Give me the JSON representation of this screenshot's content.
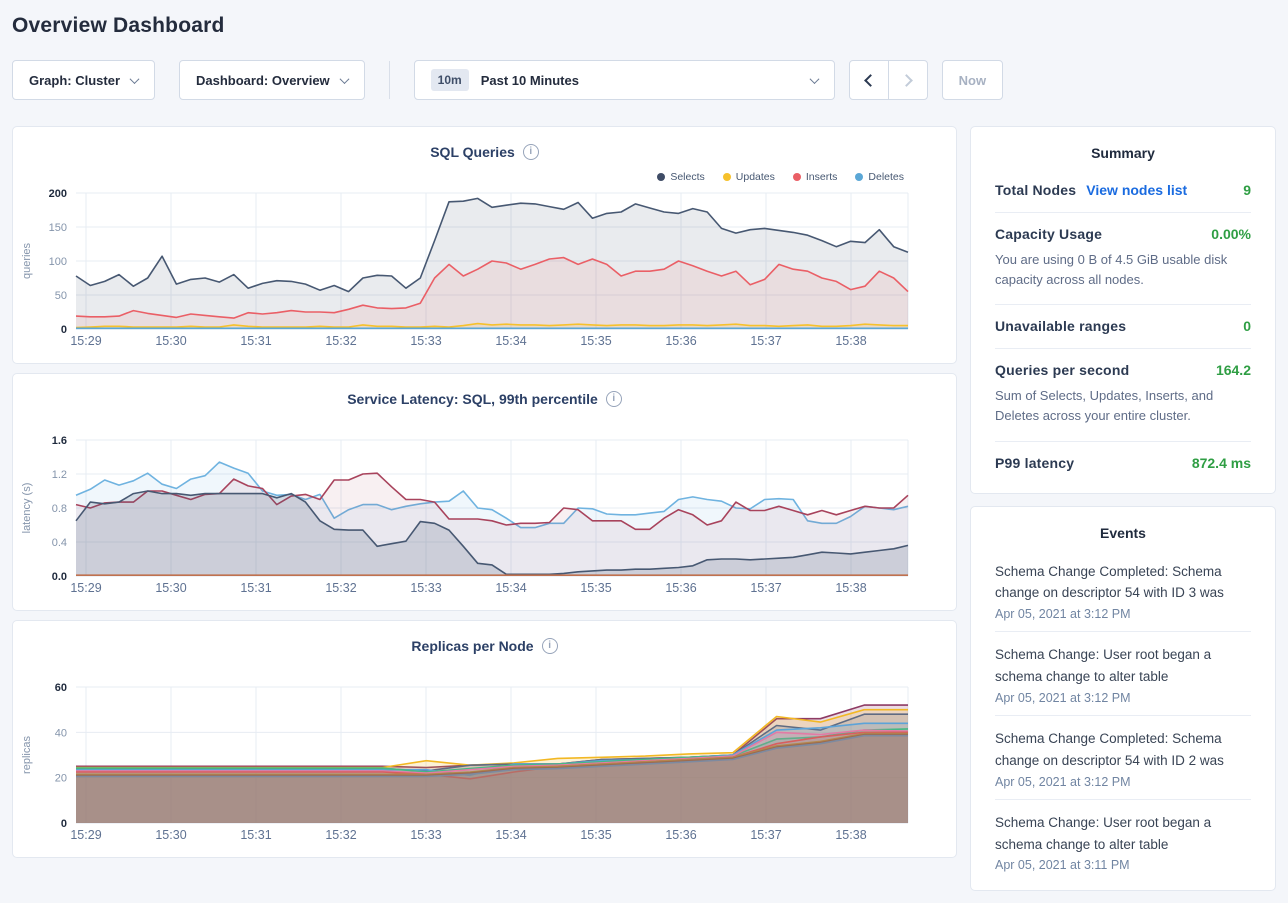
{
  "page": {
    "title": "Overview Dashboard"
  },
  "controls": {
    "graph_dropdown": "Graph: Cluster",
    "dashboard_dropdown": "Dashboard: Overview",
    "time_badge": "10m",
    "time_label": "Past 10 Minutes",
    "now_button": "Now"
  },
  "colors": {
    "accent_link": "#1a6be0",
    "healthy_green": "#2f9e44",
    "page_background": "#f4f6fa",
    "heading_navy": "#242c3d"
  },
  "chart_data": [
    {
      "type": "area",
      "title": "SQL Queries",
      "ylabel": "queries",
      "ylim": [
        0,
        200
      ],
      "yticks": [
        0,
        50,
        100,
        150,
        200
      ],
      "ytick_labels": [
        "0",
        "50",
        "100",
        "150",
        "200"
      ],
      "x_labels": [
        "15:29",
        "15:30",
        "15:31",
        "15:32",
        "15:33",
        "15:34",
        "15:35",
        "15:36",
        "15:37",
        "15:38"
      ],
      "grid": true,
      "legend_position": "top-right",
      "legend": [
        {
          "label": "Selects",
          "color": "#3f4c66"
        },
        {
          "label": "Updates",
          "color": "#f6c12c"
        },
        {
          "label": "Inserts",
          "color": "#ea5f66"
        },
        {
          "label": "Deletes",
          "color": "#5ba7d6"
        }
      ],
      "series": [
        {
          "name": "Selects",
          "color": "#475872",
          "fill_opacity": 0.12,
          "values": [
            78,
            64,
            70,
            80,
            63,
            75,
            107,
            66,
            73,
            75,
            69,
            80,
            60,
            67,
            71,
            70,
            66,
            57,
            64,
            55,
            75,
            79,
            78,
            60,
            75,
            130,
            187,
            188,
            192,
            179,
            182,
            185,
            184,
            180,
            176,
            186,
            163,
            170,
            172,
            184,
            178,
            172,
            170,
            177,
            172,
            148,
            141,
            146,
            148,
            145,
            142,
            138,
            130,
            121,
            129,
            127,
            146,
            121,
            113
          ]
        },
        {
          "name": "Inserts",
          "color": "#ea5f66",
          "fill_opacity": 0.1,
          "values": [
            19,
            18,
            18,
            19,
            27,
            23,
            20,
            17,
            22,
            20,
            18,
            16,
            24,
            22,
            24,
            27,
            25,
            25,
            24,
            29,
            35,
            31,
            30,
            31,
            38,
            75,
            95,
            78,
            88,
            100,
            97,
            88,
            95,
            103,
            105,
            95,
            103,
            95,
            78,
            85,
            85,
            88,
            100,
            93,
            85,
            78,
            85,
            65,
            73,
            95,
            88,
            85,
            75,
            70,
            58,
            63,
            85,
            75,
            55
          ]
        },
        {
          "name": "Updates",
          "color": "#f6c12c",
          "fill_opacity": 0.12,
          "values": [
            2,
            3,
            4,
            4,
            3,
            3,
            3,
            3,
            4,
            3,
            3,
            6,
            4,
            3,
            3,
            3,
            3,
            4,
            3,
            3,
            6,
            4,
            4,
            3,
            3,
            4,
            3,
            5,
            8,
            6,
            7,
            6,
            6,
            5,
            6,
            7,
            6,
            5,
            6,
            6,
            5,
            5,
            6,
            6,
            5,
            6,
            7,
            5,
            5,
            4,
            5,
            6,
            4,
            4,
            5,
            7,
            6,
            5,
            5
          ]
        },
        {
          "name": "Deletes",
          "color": "#5ba7d6",
          "fill_opacity": 0.15,
          "values": [
            1,
            1,
            1,
            1,
            1,
            1,
            1,
            1,
            1,
            1,
            1,
            1,
            1,
            1,
            1,
            1,
            1,
            1,
            1,
            1,
            1,
            1,
            1,
            1,
            1,
            1,
            1,
            1,
            1,
            1,
            1,
            1,
            1,
            1,
            1,
            1,
            1,
            1,
            1,
            1,
            1,
            1,
            1,
            1,
            1,
            1,
            1,
            1,
            1,
            1,
            1,
            1,
            1,
            1,
            1,
            1,
            1,
            1,
            1
          ]
        }
      ]
    },
    {
      "type": "area",
      "title": "Service Latency: SQL, 99th percentile",
      "ylabel": "latency (s)",
      "ylim": [
        0,
        1.6
      ],
      "yticks": [
        0,
        0.4,
        0.8,
        1.2,
        1.6
      ],
      "ytick_labels": [
        "0.0",
        "0.4",
        "0.8",
        "1.2",
        "1.6"
      ],
      "x_labels": [
        "15:29",
        "15:30",
        "15:31",
        "15:32",
        "15:33",
        "15:34",
        "15:35",
        "15:36",
        "15:37",
        "15:38"
      ],
      "grid": true,
      "series": [
        {
          "name": "series-1",
          "color": "#6fb3e0",
          "fill_opacity": 0.1,
          "values": [
            0.95,
            1.02,
            1.13,
            1.07,
            1.12,
            1.21,
            1.08,
            1.03,
            1.14,
            1.18,
            1.34,
            1.27,
            1.21,
            1.0,
            0.95,
            0.96,
            0.9,
            0.96,
            0.68,
            0.78,
            0.84,
            0.84,
            0.78,
            0.82,
            0.85,
            0.87,
            0.88,
            1.0,
            0.8,
            0.78,
            0.68,
            0.57,
            0.57,
            0.62,
            0.62,
            0.8,
            0.79,
            0.73,
            0.72,
            0.72,
            0.74,
            0.76,
            0.9,
            0.93,
            0.9,
            0.88,
            0.8,
            0.79,
            0.9,
            0.91,
            0.9,
            0.65,
            0.62,
            0.62,
            0.7,
            0.82,
            0.8,
            0.78,
            0.82
          ]
        },
        {
          "name": "series-2",
          "color": "#a8435c",
          "fill_opacity": 0.08,
          "values": [
            0.84,
            0.8,
            0.86,
            0.87,
            0.87,
            1.0,
            1.0,
            0.95,
            0.9,
            0.96,
            0.97,
            1.14,
            1.06,
            1.03,
            0.84,
            0.94,
            0.96,
            0.9,
            1.13,
            1.13,
            1.2,
            1.21,
            1.05,
            0.9,
            0.9,
            0.87,
            0.67,
            0.67,
            0.67,
            0.65,
            0.6,
            0.62,
            0.62,
            0.63,
            0.8,
            0.78,
            0.65,
            0.65,
            0.65,
            0.55,
            0.55,
            0.68,
            0.78,
            0.72,
            0.6,
            0.65,
            0.87,
            0.77,
            0.77,
            0.82,
            0.77,
            0.72,
            0.77,
            0.72,
            0.77,
            0.82,
            0.8,
            0.8,
            0.95
          ]
        },
        {
          "name": "series-3",
          "color": "#475872",
          "fill_opacity": 0.18,
          "values": [
            0.65,
            0.87,
            0.85,
            0.87,
            0.97,
            1.0,
            0.97,
            0.97,
            0.95,
            0.97,
            0.97,
            0.97,
            0.97,
            0.97,
            0.92,
            0.97,
            0.87,
            0.65,
            0.55,
            0.54,
            0.54,
            0.35,
            0.38,
            0.41,
            0.64,
            0.62,
            0.54,
            0.35,
            0.15,
            0.13,
            0.02,
            0.02,
            0.02,
            0.02,
            0.03,
            0.05,
            0.06,
            0.07,
            0.07,
            0.08,
            0.08,
            0.09,
            0.1,
            0.12,
            0.19,
            0.2,
            0.2,
            0.19,
            0.2,
            0.21,
            0.22,
            0.25,
            0.28,
            0.27,
            0.26,
            0.28,
            0.3,
            0.32,
            0.36
          ]
        },
        {
          "name": "series-4",
          "color": "#c0714f",
          "fill_opacity": 0,
          "values": [
            0.01,
            0.01,
            0.01,
            0.01,
            0.01,
            0.01,
            0.01,
            0.01,
            0.01,
            0.01,
            0.01,
            0.01,
            0.01,
            0.01,
            0.01,
            0.01,
            0.01,
            0.01,
            0.01,
            0.01,
            0.01,
            0.01,
            0.01,
            0.01,
            0.01,
            0.01,
            0.01,
            0.01,
            0.01,
            0.01,
            0.01,
            0.01,
            0.01,
            0.01,
            0.01,
            0.01,
            0.01,
            0.01,
            0.01,
            0.01,
            0.01,
            0.01,
            0.01,
            0.01,
            0.01,
            0.01,
            0.01,
            0.01,
            0.01,
            0.01,
            0.01,
            0.01,
            0.01,
            0.01,
            0.01,
            0.01,
            0.01,
            0.01,
            0.01
          ]
        }
      ]
    },
    {
      "type": "area",
      "title": "Replicas per Node",
      "ylabel": "replicas",
      "ylim": [
        0,
        60
      ],
      "yticks": [
        0,
        20,
        40,
        60
      ],
      "ytick_labels": [
        "0",
        "20",
        "40",
        "60"
      ],
      "x_labels": [
        "15:29",
        "15:30",
        "15:31",
        "15:32",
        "15:33",
        "15:34",
        "15:35",
        "15:36",
        "15:37",
        "15:38"
      ],
      "grid": true,
      "series": [
        {
          "name": "series-1",
          "color": "#8e3b64",
          "fill_opacity": 0.18,
          "values": [
            25,
            25,
            25,
            25,
            25,
            25,
            25,
            25,
            24.5,
            25.5,
            26,
            26,
            28,
            28.5,
            29,
            30,
            46,
            46,
            52,
            52
          ]
        },
        {
          "name": "series-2",
          "color": "#f2b824",
          "fill_opacity": 0.18,
          "values": [
            24.5,
            24.5,
            24.5,
            24.5,
            24.5,
            24.5,
            24.5,
            24.5,
            27.5,
            25.5,
            26.5,
            28.5,
            29,
            29.5,
            30.5,
            31,
            47,
            44.5,
            50,
            50
          ]
        },
        {
          "name": "series-3",
          "color": "#5f6b82",
          "fill_opacity": 0.18,
          "values": [
            24,
            24,
            24,
            24,
            24,
            24,
            24,
            24,
            23,
            25.5,
            26,
            26,
            28,
            28.5,
            29,
            30,
            43,
            41,
            48,
            48
          ]
        },
        {
          "name": "series-4",
          "color": "#5ca3d8",
          "fill_opacity": 0.18,
          "values": [
            23.5,
            23.5,
            23.5,
            23.5,
            23.5,
            23.5,
            23.5,
            23.5,
            23.5,
            21,
            26,
            26,
            27.5,
            28,
            29,
            30,
            41,
            42,
            44,
            44
          ]
        },
        {
          "name": "series-5",
          "color": "#45b984",
          "fill_opacity": 0.18,
          "values": [
            24.2,
            24.2,
            24.2,
            24.2,
            24.2,
            24.2,
            24.2,
            24.2,
            22.5,
            24,
            25.5,
            26,
            27,
            28,
            29,
            29.5,
            37,
            38,
            41,
            41.5
          ]
        },
        {
          "name": "series-6",
          "color": "#e27ba5",
          "fill_opacity": 0.18,
          "values": [
            23,
            23,
            23,
            23,
            23,
            23,
            23,
            23,
            22,
            23.5,
            25,
            25.5,
            26.5,
            27.5,
            28.5,
            29.5,
            40,
            39,
            41,
            40.5
          ]
        },
        {
          "name": "series-7",
          "color": "#d75f5f",
          "fill_opacity": 0.18,
          "values": [
            22.5,
            22.5,
            22.5,
            22.5,
            22.5,
            22.5,
            22.5,
            22.5,
            21.5,
            19.5,
            22.5,
            25,
            26,
            27,
            28,
            29,
            35,
            38,
            40,
            40
          ]
        },
        {
          "name": "series-8",
          "color": "#b4884d",
          "fill_opacity": 0.18,
          "values": [
            21.5,
            21.5,
            21.5,
            21.5,
            21.5,
            21.5,
            21.5,
            21.5,
            21.5,
            22.5,
            24.5,
            25,
            26,
            27,
            28,
            29,
            34,
            36,
            39.5,
            39.5
          ]
        },
        {
          "name": "series-9",
          "color": "#9c6b4f",
          "fill_opacity": 0.18,
          "values": [
            21,
            21,
            21,
            21,
            21,
            21,
            21,
            21,
            21,
            22,
            24,
            24.5,
            25.5,
            26.5,
            27.5,
            28.5,
            33.5,
            35.5,
            39,
            39
          ]
        },
        {
          "name": "series-10",
          "color": "#7d8aa0",
          "fill_opacity": 0.18,
          "values": [
            20.5,
            20.5,
            20.5,
            20.5,
            20.5,
            20.5,
            20.5,
            20.5,
            20.5,
            21.5,
            23.5,
            24,
            25,
            26,
            27,
            28,
            33,
            35,
            38.5,
            38.5
          ]
        }
      ]
    }
  ],
  "summary": {
    "title": "Summary",
    "total_nodes_label": "Total Nodes",
    "total_nodes_link": "View nodes list",
    "total_nodes_value": "9",
    "capacity_label": "Capacity Usage",
    "capacity_value": "0.00%",
    "capacity_desc": "You are using 0 B of 4.5 GiB usable disk capacity across all nodes.",
    "unavailable_label": "Unavailable ranges",
    "unavailable_value": "0",
    "qps_label": "Queries per second",
    "qps_value": "164.2",
    "qps_desc": "Sum of Selects, Updates, Inserts, and Deletes across your entire cluster.",
    "p99_label": "P99 latency",
    "p99_value": "872.4 ms"
  },
  "events": {
    "title": "Events",
    "items": [
      {
        "text": "Schema Change Completed: Schema change on descriptor 54 with ID 3 was",
        "timestamp": "Apr 05, 2021 at 3:12 PM"
      },
      {
        "text": "Schema Change: User root began a schema change to alter table",
        "timestamp": "Apr 05, 2021 at 3:12 PM"
      },
      {
        "text": "Schema Change Completed: Schema change on descriptor 54 with ID 2 was",
        "timestamp": "Apr 05, 2021 at 3:12 PM"
      },
      {
        "text": "Schema Change: User root began a schema change to alter table",
        "timestamp": "Apr 05, 2021 at 3:11 PM"
      }
    ]
  }
}
